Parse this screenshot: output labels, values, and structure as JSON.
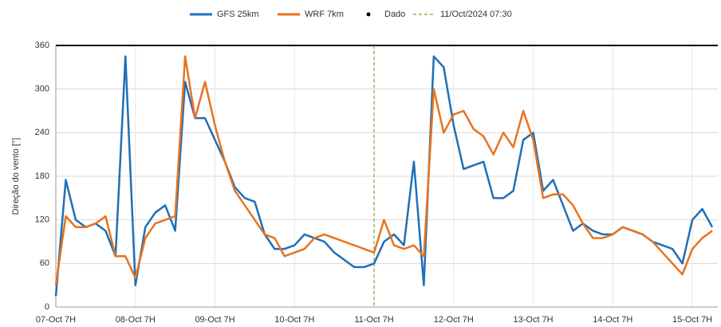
{
  "chart_data": {
    "type": "line",
    "ylabel": "Direção do vento [°]",
    "ylim": [
      0,
      360
    ],
    "yticks": [
      0,
      60,
      120,
      180,
      240,
      300,
      360
    ],
    "grid": true,
    "categories": [
      "07-Oct 7H",
      null,
      null,
      null,
      null,
      null,
      null,
      null,
      "08-Oct 7H",
      null,
      null,
      null,
      null,
      null,
      null,
      null,
      "09-Oct 7H",
      null,
      null,
      null,
      null,
      null,
      null,
      null,
      "10-Oct 7H",
      null,
      null,
      null,
      null,
      null,
      null,
      null,
      "11-Oct 7H",
      null,
      null,
      null,
      null,
      null,
      null,
      null,
      "12-Oct 7H",
      null,
      null,
      null,
      null,
      null,
      null,
      null,
      "13-Oct 7H",
      null,
      null,
      null,
      null,
      null,
      null,
      null,
      "14-Oct 7H",
      null,
      null,
      null,
      null,
      null,
      null,
      null,
      "15-Oct 7H",
      null,
      null
    ],
    "series": [
      {
        "name": "GFS 25km",
        "color": "#1f6fb8",
        "values": [
          15,
          175,
          120,
          110,
          115,
          105,
          70,
          345,
          30,
          110,
          130,
          140,
          105,
          310,
          260,
          260,
          230,
          200,
          165,
          150,
          145,
          100,
          80,
          80,
          85,
          100,
          95,
          90,
          75,
          65,
          55,
          55,
          60,
          90,
          100,
          85,
          200,
          30,
          345,
          330,
          250,
          190,
          195,
          200,
          150,
          150,
          160,
          230,
          240,
          160,
          175,
          140,
          105,
          115,
          105,
          100,
          100,
          110,
          105,
          100,
          90,
          85,
          80,
          60,
          120,
          135,
          110
        ]
      },
      {
        "name": "WRF 7km",
        "color": "#e8731e",
        "values": [
          30,
          125,
          110,
          110,
          115,
          125,
          70,
          70,
          40,
          95,
          115,
          120,
          125,
          345,
          260,
          310,
          250,
          200,
          160,
          140,
          120,
          100,
          95,
          70,
          75,
          80,
          95,
          100,
          95,
          90,
          85,
          80,
          75,
          120,
          85,
          80,
          85,
          70,
          300,
          240,
          265,
          270,
          245,
          235,
          210,
          240,
          220,
          270,
          230,
          150,
          155,
          155,
          140,
          115,
          95,
          95,
          100,
          110,
          105,
          100,
          90,
          75,
          60,
          45,
          80,
          95,
          105
        ]
      },
      {
        "name": "Dado",
        "color": "#000000",
        "marker": "dot",
        "values": [
          null,
          null,
          null,
          null,
          null,
          null,
          null,
          null,
          null,
          null,
          null,
          null,
          null,
          null,
          null,
          null,
          null,
          null,
          null,
          null,
          null,
          null,
          null,
          null,
          null,
          null,
          null,
          null,
          null,
          null,
          null,
          null,
          null,
          null,
          null,
          null,
          null,
          null,
          null,
          null,
          null,
          null,
          null,
          null,
          null,
          null,
          null,
          null,
          null,
          null,
          null,
          null,
          null,
          null,
          null,
          null,
          null,
          null,
          null,
          null,
          null,
          null,
          null,
          null,
          null,
          null,
          null
        ]
      }
    ],
    "annotations": [
      {
        "text": "11/Oct/2024 07:30",
        "x": "11-Oct 7H",
        "color": "#7aaa3a"
      }
    ]
  }
}
